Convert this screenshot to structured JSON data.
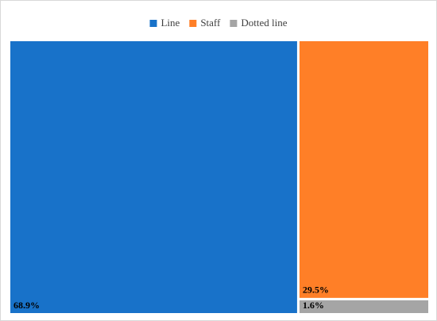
{
  "chart_data": {
    "type": "treemap",
    "categories": [
      "Line",
      "Staff",
      "Dotted line"
    ],
    "values": [
      68.9,
      29.5,
      1.6
    ],
    "value_labels": [
      "68.9%",
      "29.5%",
      "1.6%"
    ],
    "colors": [
      "#1872c9",
      "#ff7f27",
      "#a5a5a5"
    ],
    "legend": "top"
  }
}
